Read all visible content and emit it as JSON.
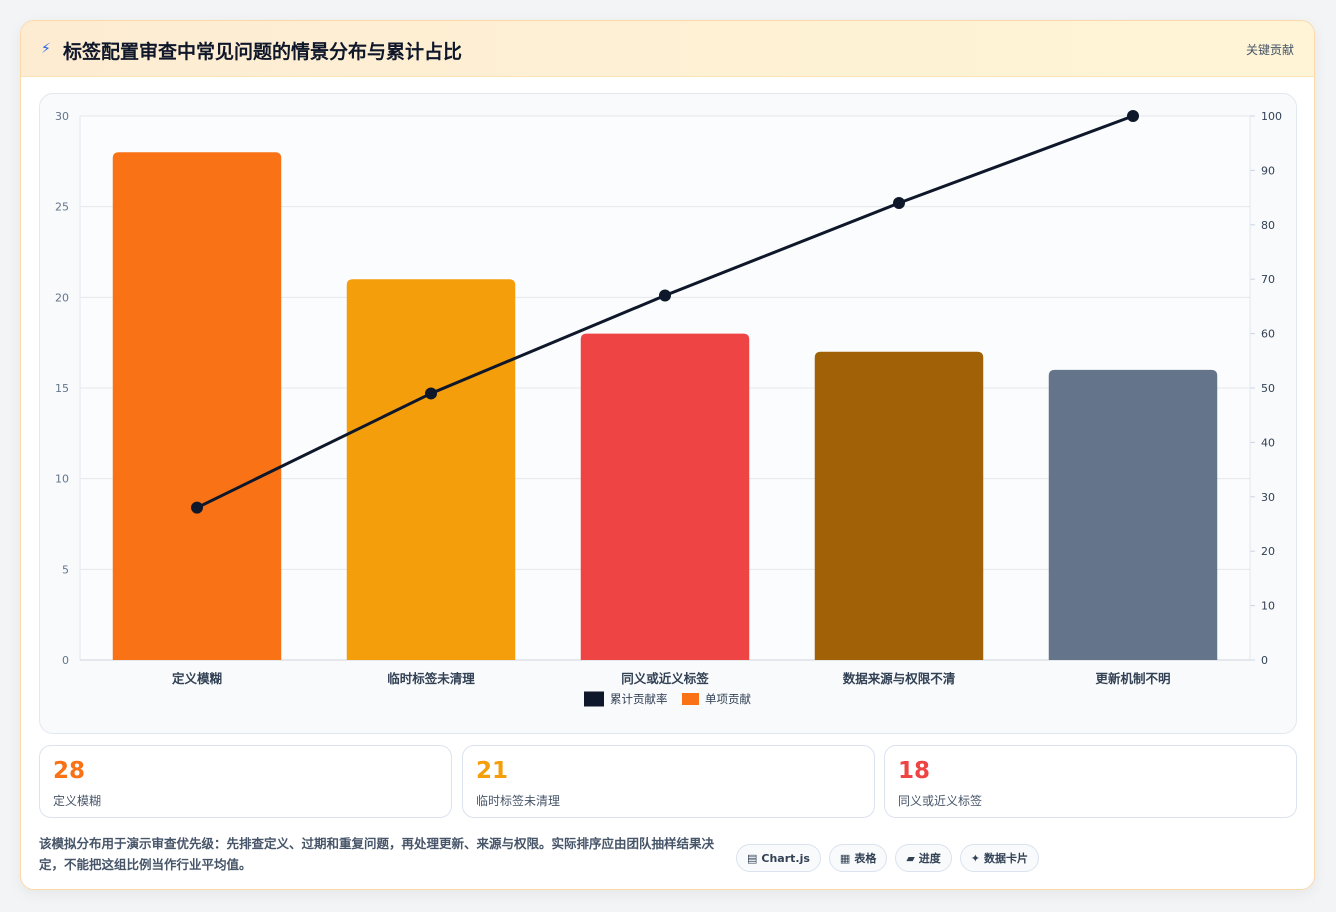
{
  "header": {
    "title": "标签配置审查中常见问题的情景分布与累计占比",
    "icon": "bolt-icon",
    "tag": "关键贡献"
  },
  "chart_data": {
    "type": "bar",
    "categories": [
      "定义模糊",
      "临时标签未清理",
      "同义或近义标签",
      "数据来源与权限不清",
      "更新机制不明"
    ],
    "series": [
      {
        "name": "单项贡献",
        "type": "bar",
        "axis": "left",
        "values": [
          28,
          21,
          18,
          17,
          16
        ],
        "colors": [
          "#f97316",
          "#f59e0b",
          "#ef4444",
          "#a16207",
          "#64748b"
        ]
      },
      {
        "name": "累计贡献率",
        "type": "line",
        "axis": "right",
        "values": [
          28,
          49,
          67,
          84,
          100
        ],
        "color": "#0f172a"
      }
    ],
    "ylim": [
      0,
      30
    ],
    "y_ticks": [
      0,
      5,
      10,
      15,
      20,
      25,
      30
    ],
    "y2lim": [
      0,
      100
    ],
    "y2_ticks": [
      0,
      10,
      20,
      30,
      40,
      50,
      60,
      70,
      80,
      90,
      100
    ],
    "grid": true,
    "legend_position": "bottom",
    "legend": [
      {
        "name": "累计贡献率",
        "color": "#0f172a"
      },
      {
        "name": "单项贡献",
        "color": "#f97316"
      }
    ]
  },
  "stats": [
    {
      "value": "28",
      "label": "定义模糊",
      "color": "#f97316"
    },
    {
      "value": "21",
      "label": "临时标签未清理",
      "color": "#f59e0b"
    },
    {
      "value": "18",
      "label": "同义或近义标签",
      "color": "#ef4444"
    }
  ],
  "note": "该模拟分布用于演示审查优先级：先排查定义、过期和重复问题，再处理更新、来源与权限。实际排序应由团队抽样结果决定，不能把这组比例当作行业平均值。",
  "chips": [
    {
      "icon": "▤",
      "icon_name": "chart-icon",
      "label": "Chart.js"
    },
    {
      "icon": "▦",
      "icon_name": "table-icon",
      "label": "表格"
    },
    {
      "icon": "▰",
      "icon_name": "progress-icon",
      "label": "进度"
    },
    {
      "icon": "✦",
      "icon_name": "sparkle-icon",
      "label": "数据卡片"
    }
  ]
}
